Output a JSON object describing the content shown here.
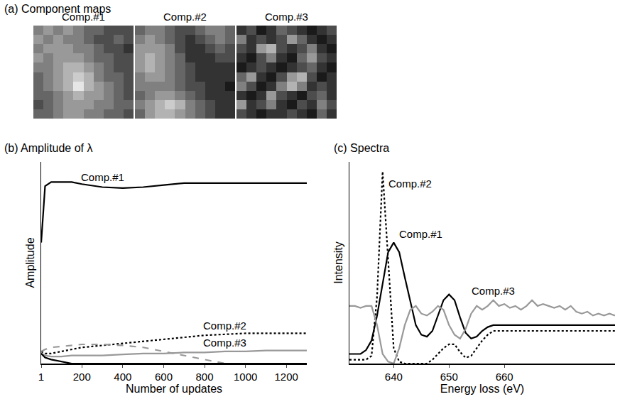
{
  "chart_data": [
    {
      "type": "heatmap",
      "title": "(a) Component maps",
      "zlim": [
        0,
        10
      ],
      "tick_labels": false,
      "maps": [
        {
          "title": "Comp.#1",
          "cells": [
            [
              5,
              6,
              5,
              6,
              5,
              4,
              4,
              3,
              3,
              3
            ],
            [
              6,
              5,
              6,
              5,
              5,
              4,
              3,
              3,
              4,
              3
            ],
            [
              5,
              6,
              6,
              6,
              5,
              5,
              4,
              3,
              3,
              2
            ],
            [
              6,
              5,
              6,
              6,
              6,
              5,
              4,
              4,
              3,
              3
            ],
            [
              5,
              5,
              6,
              7,
              7,
              6,
              5,
              4,
              3,
              3
            ],
            [
              4,
              5,
              6,
              7,
              8,
              7,
              5,
              4,
              4,
              3
            ],
            [
              4,
              5,
              6,
              7,
              9,
              7,
              6,
              5,
              4,
              3
            ],
            [
              4,
              4,
              5,
              6,
              7,
              6,
              6,
              5,
              4,
              3
            ],
            [
              3,
              4,
              5,
              6,
              6,
              6,
              5,
              5,
              4,
              4
            ],
            [
              4,
              4,
              5,
              6,
              6,
              5,
              5,
              4,
              4,
              3
            ]
          ]
        },
        {
          "title": "Comp.#2",
          "cells": [
            [
              4,
              5,
              5,
              4,
              3,
              3,
              4,
              5,
              5,
              4
            ],
            [
              5,
              6,
              5,
              4,
              3,
              2,
              3,
              4,
              5,
              4
            ],
            [
              6,
              6,
              6,
              5,
              3,
              2,
              2,
              3,
              4,
              3
            ],
            [
              6,
              7,
              6,
              5,
              4,
              2,
              2,
              2,
              3,
              3
            ],
            [
              6,
              7,
              6,
              5,
              4,
              3,
              2,
              2,
              2,
              2
            ],
            [
              5,
              6,
              6,
              5,
              4,
              3,
              2,
              2,
              2,
              2
            ],
            [
              5,
              5,
              5,
              5,
              4,
              3,
              3,
              2,
              2,
              1
            ],
            [
              4,
              5,
              6,
              6,
              5,
              4,
              3,
              2,
              2,
              2
            ],
            [
              5,
              6,
              7,
              8,
              7,
              5,
              4,
              3,
              2,
              2
            ],
            [
              4,
              6,
              7,
              7,
              6,
              5,
              4,
              3,
              2,
              2
            ]
          ]
        },
        {
          "title": "Comp.#3",
          "cells": [
            [
              2,
              3,
              1,
              2,
              4,
              3,
              2,
              1,
              2,
              3
            ],
            [
              5,
              2,
              3,
              2,
              3,
              6,
              4,
              2,
              1,
              2
            ],
            [
              3,
              2,
              6,
              7,
              3,
              2,
              3,
              5,
              2,
              1
            ],
            [
              2,
              1,
              3,
              5,
              2,
              1,
              4,
              6,
              3,
              2
            ],
            [
              1,
              2,
              3,
              2,
              1,
              2,
              3,
              4,
              2,
              1
            ],
            [
              4,
              6,
              2,
              1,
              3,
              6,
              7,
              3,
              1,
              2
            ],
            [
              5,
              3,
              1,
              2,
              5,
              7,
              5,
              2,
              3,
              2
            ],
            [
              2,
              1,
              2,
              6,
              3,
              2,
              1,
              3,
              4,
              2
            ],
            [
              6,
              2,
              3,
              5,
              2,
              1,
              3,
              2,
              5,
              3
            ],
            [
              3,
              2,
              1,
              2,
              2,
              3,
              2,
              1,
              4,
              2
            ]
          ]
        }
      ]
    },
    {
      "type": "line",
      "title": "(b) Amplitude of λ",
      "x_label": "Number of updates",
      "y_label": "Amplitude",
      "xlim": [
        1,
        1300
      ],
      "xticks": [
        1,
        200,
        400,
        600,
        800,
        1000,
        1200
      ],
      "ylim": [
        0,
        1
      ],
      "tick_labels": "x",
      "x": [
        1,
        20,
        50,
        100,
        150,
        200,
        300,
        400,
        500,
        600,
        700,
        800,
        900,
        1000,
        1100,
        1200,
        1300
      ],
      "series": [
        {
          "name": "Comp.#1",
          "color": "#000000",
          "line_style": "solid",
          "values": [
            0.6,
            0.88,
            0.9,
            0.9,
            0.9,
            0.89,
            0.875,
            0.87,
            0.875,
            0.885,
            0.895,
            0.895,
            0.895,
            0.895,
            0.895,
            0.895,
            0.895
          ]
        },
        {
          "name": "Comp.#2",
          "color": "#000000",
          "line_style": "dotted",
          "values": [
            0.06,
            0.05,
            0.05,
            0.06,
            0.07,
            0.08,
            0.09,
            0.1,
            0.11,
            0.12,
            0.13,
            0.14,
            0.145,
            0.15,
            0.15,
            0.15,
            0.15
          ]
        },
        {
          "name": "Comp.#3",
          "color": "#999999",
          "line_style": "solid",
          "values": [
            0.05,
            0.04,
            0.035,
            0.035,
            0.04,
            0.04,
            0.04,
            0.045,
            0.05,
            0.05,
            0.055,
            0.055,
            0.06,
            0.06,
            0.065,
            0.065,
            0.065
          ]
        },
        {
          "color": "#999999",
          "line_style": "dashed",
          "values": [
            0.06,
            0.07,
            0.08,
            0.085,
            0.09,
            0.095,
            0.095,
            0.09,
            0.08,
            0.06,
            0.04,
            0.02,
            0,
            0,
            0,
            0,
            0
          ]
        },
        {
          "color": "#000000",
          "line_style": "solid",
          "values": [
            0.05,
            0.03,
            0.02,
            0.01,
            0,
            0,
            0,
            0,
            0,
            0,
            0,
            0,
            0,
            0,
            0,
            0,
            0
          ]
        }
      ]
    },
    {
      "type": "line",
      "title": "(c) Spectra",
      "x_label": "Energy loss (eV)",
      "y_label": "Intensity",
      "xlim": [
        632,
        680
      ],
      "xticks": [
        640,
        650,
        660
      ],
      "ylim": [
        0,
        1.05
      ],
      "tick_labels": "x",
      "x": [
        632,
        633,
        634,
        635,
        636,
        637,
        638,
        639,
        640,
        641,
        642,
        643,
        644,
        645,
        646,
        647,
        648,
        649,
        650,
        651,
        652,
        653,
        654,
        655,
        656,
        657,
        658,
        659,
        660,
        661,
        662,
        663,
        664,
        665,
        666,
        667,
        668,
        669,
        670,
        671,
        672,
        673,
        674,
        675,
        676,
        677,
        678,
        679,
        680
      ],
      "series": [
        {
          "name": "Comp.#1",
          "color": "#000000",
          "line_style": "solid",
          "values": [
            0.05,
            0.05,
            0.05,
            0.07,
            0.12,
            0.25,
            0.42,
            0.58,
            0.63,
            0.58,
            0.45,
            0.32,
            0.2,
            0.15,
            0.14,
            0.17,
            0.25,
            0.33,
            0.36,
            0.33,
            0.24,
            0.16,
            0.13,
            0.14,
            0.17,
            0.19,
            0.2,
            0.2,
            0.2,
            0.2,
            0.2,
            0.2,
            0.2,
            0.2,
            0.2,
            0.2,
            0.2,
            0.2,
            0.2,
            0.2,
            0.2,
            0.2,
            0.2,
            0.2,
            0.2,
            0.2,
            0.2,
            0.2,
            0.2
          ]
        },
        {
          "name": "Comp.#2",
          "color": "#000000",
          "line_style": "dotted",
          "values": [
            0.02,
            0.02,
            0.02,
            0.02,
            0.04,
            0.35,
            1.0,
            0.55,
            0.08,
            0.01,
            0,
            0,
            0,
            0,
            0,
            0.02,
            0.05,
            0.08,
            0.1,
            0.1,
            0.06,
            0.03,
            0.04,
            0.08,
            0.12,
            0.15,
            0.17,
            0.17,
            0.17,
            0.17,
            0.17,
            0.17,
            0.17,
            0.17,
            0.17,
            0.17,
            0.17,
            0.17,
            0.17,
            0.17,
            0.17,
            0.17,
            0.17,
            0.17,
            0.17,
            0.17,
            0.17,
            0.17,
            0.17
          ]
        },
        {
          "name": "Comp.#3",
          "color": "#999999",
          "line_style": "solid",
          "values": [
            0.3,
            0.3,
            0.29,
            0.3,
            0.3,
            0.2,
            0.05,
            0.01,
            0.0,
            0.08,
            0.2,
            0.28,
            0.3,
            0.26,
            0.25,
            0.27,
            0.3,
            0.28,
            0.2,
            0.15,
            0.13,
            0.18,
            0.26,
            0.3,
            0.28,
            0.3,
            0.33,
            0.3,
            0.31,
            0.29,
            0.3,
            0.28,
            0.3,
            0.33,
            0.3,
            0.31,
            0.3,
            0.29,
            0.3,
            0.28,
            0.3,
            0.27,
            0.26,
            0.27,
            0.25,
            0.26,
            0.25,
            0.26,
            0.25
          ]
        }
      ]
    }
  ]
}
